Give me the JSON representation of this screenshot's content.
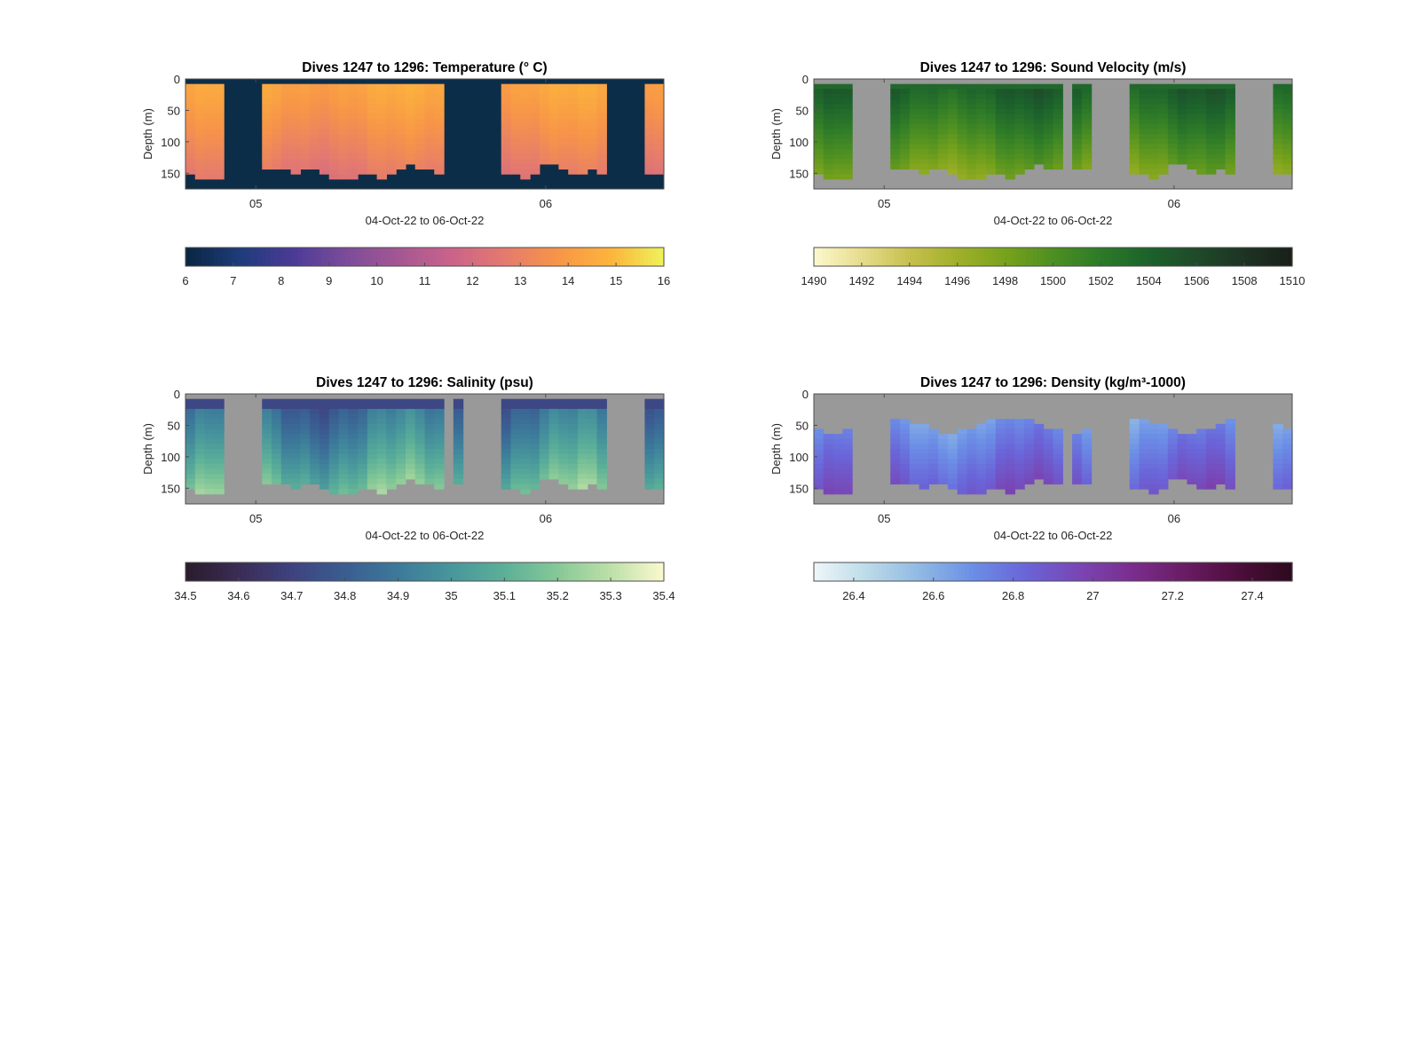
{
  "figure": {
    "background": "#ffffff"
  },
  "chart_data": [
    {
      "id": "temperature",
      "type": "heatmap",
      "title": "Dives 1247 to 1296: Temperature (° C)",
      "xlabel": "04-Oct-22 to 06-Oct-22",
      "ylabel": "Depth (m)",
      "xticks": [
        "05",
        "06"
      ],
      "yticks": [
        0,
        50,
        100,
        150
      ],
      "ylim": [
        0,
        175
      ],
      "columns": 50,
      "gaps": [
        [
          4,
          7
        ],
        [
          27,
          28
        ],
        [
          29,
          32
        ],
        [
          44,
          47
        ]
      ],
      "gap_color": "#0c2d48",
      "field": "temperature",
      "colorbar": {
        "ticks": [
          "6",
          "7",
          "8",
          "9",
          "10",
          "11",
          "12",
          "13",
          "14",
          "15",
          "16"
        ],
        "range": [
          6,
          16
        ],
        "colormap": [
          "#0a2540",
          "#1d3c7a",
          "#4a3a96",
          "#7b4c9a",
          "#a45792",
          "#c9638a",
          "#e47a6f",
          "#f79548",
          "#fcb43c",
          "#eef25a"
        ]
      }
    },
    {
      "id": "sound-velocity",
      "type": "heatmap",
      "title": "Dives 1247 to 1296: Sound Velocity (m/s)",
      "xlabel": "04-Oct-22 to 06-Oct-22",
      "ylabel": "Depth (m)",
      "xticks": [
        "05",
        "06"
      ],
      "yticks": [
        0,
        50,
        100,
        150
      ],
      "ylim": [
        0,
        175
      ],
      "columns": 50,
      "gaps": [
        [
          4,
          7
        ],
        [
          26,
          26
        ],
        [
          29,
          32
        ],
        [
          44,
          47
        ]
      ],
      "gap_color": "#999999",
      "field": "sound",
      "colorbar": {
        "ticks": [
          "1490",
          "1492",
          "1494",
          "1496",
          "1498",
          "1500",
          "1502",
          "1504",
          "1506",
          "1508",
          "1510"
        ],
        "range": [
          1490,
          1510
        ],
        "colormap": [
          "#fcf8cd",
          "#e6dc8d",
          "#c6c04e",
          "#a0b02a",
          "#78a21c",
          "#4d8f22",
          "#2d7a28",
          "#1c622c",
          "#1f4a2a",
          "#1e3324",
          "#191f18"
        ]
      }
    },
    {
      "id": "salinity",
      "type": "heatmap",
      "title": "Dives 1247 to 1296: Salinity (psu)",
      "xlabel": "04-Oct-22 to 06-Oct-22",
      "ylabel": "Depth (m)",
      "xticks": [
        "05",
        "06"
      ],
      "yticks": [
        0,
        50,
        100,
        150
      ],
      "ylim": [
        0,
        175
      ],
      "columns": 50,
      "gaps": [
        [
          4,
          7
        ],
        [
          27,
          27
        ],
        [
          29,
          32
        ],
        [
          44,
          47
        ]
      ],
      "gap_color": "#999999",
      "field": "salinity",
      "colorbar": {
        "ticks": [
          "34.5",
          "34.6",
          "34.7",
          "34.8",
          "34.9",
          "35",
          "35.1",
          "35.2",
          "35.3",
          "35.4"
        ],
        "range": [
          34.5,
          35.4
        ],
        "colormap": [
          "#2a1c2c",
          "#3b2c55",
          "#3e4280",
          "#3a5d92",
          "#3c7a9a",
          "#48969c",
          "#5cb098",
          "#86c897",
          "#bde0a8",
          "#fbf9cf"
        ]
      }
    },
    {
      "id": "density",
      "type": "heatmap",
      "title": "Dives 1247 to 1296: Density (kg/m³-1000)",
      "xlabel": "04-Oct-22 to 06-Oct-22",
      "ylabel": "Depth (m)",
      "xticks": [
        "05",
        "06"
      ],
      "yticks": [
        0,
        50,
        100,
        150
      ],
      "ylim": [
        0,
        175
      ],
      "columns": 50,
      "gaps": [
        [
          4,
          7
        ],
        [
          26,
          26
        ],
        [
          29,
          32
        ],
        [
          44,
          47
        ]
      ],
      "gap_color": "#999999",
      "field": "density",
      "colorbar": {
        "ticks": [
          "26.4",
          "26.6",
          "26.8",
          "27",
          "27.2",
          "27.4"
        ],
        "range": [
          26.3,
          27.5
        ],
        "colormap": [
          "#eef6f9",
          "#bcdbe8",
          "#8fb9e4",
          "#6b8ee6",
          "#6a64d8",
          "#7a45b4",
          "#7a2d8d",
          "#6a1b63",
          "#4c0e3b",
          "#2c0a1e"
        ]
      }
    }
  ]
}
